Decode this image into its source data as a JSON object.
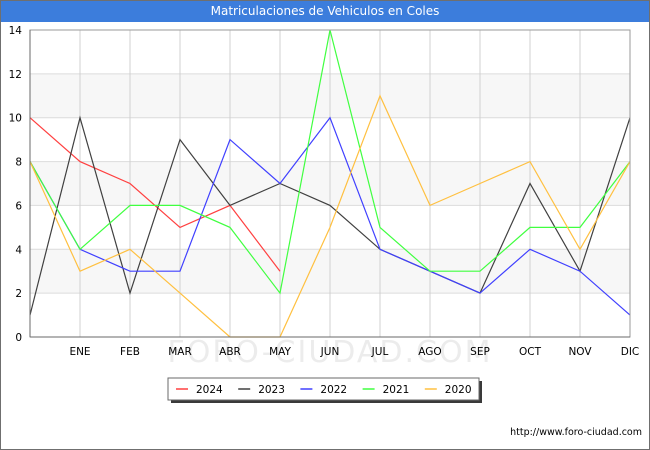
{
  "title": "Matriculaciones de Vehiculos en Coles",
  "credit": "http://www.foro-ciudad.com",
  "watermark": "FORO-CIUDAD.COM",
  "chart_data": {
    "type": "line",
    "title": "Matriculaciones de Vehiculos en Coles",
    "xlabel": "",
    "ylabel": "",
    "categories": [
      "",
      "ENE",
      "FEB",
      "MAR",
      "ABR",
      "MAY",
      "JUN",
      "JUL",
      "AGO",
      "SEP",
      "OCT",
      "NOV",
      "DIC"
    ],
    "ylim": [
      0,
      14
    ],
    "yticks": [
      0,
      2,
      4,
      6,
      8,
      10,
      12,
      14
    ],
    "grid": true,
    "legend_position": "bottom",
    "series": [
      {
        "name": "2024",
        "color": "#ff4040",
        "values": [
          10,
          8,
          7,
          5,
          6,
          3,
          null,
          null,
          null,
          null,
          null,
          null,
          null
        ]
      },
      {
        "name": "2023",
        "color": "#404040",
        "values": [
          1,
          10,
          2,
          9,
          6,
          7,
          6,
          4,
          3,
          2,
          7,
          3,
          10
        ]
      },
      {
        "name": "2022",
        "color": "#4040ff",
        "values": [
          8,
          4,
          3,
          3,
          9,
          7,
          10,
          4,
          3,
          2,
          4,
          3,
          1
        ]
      },
      {
        "name": "2021",
        "color": "#40ff40",
        "values": [
          8,
          4,
          6,
          6,
          5,
          2,
          14,
          5,
          3,
          3,
          5,
          5,
          8
        ]
      },
      {
        "name": "2020",
        "color": "#ffc040",
        "values": [
          8,
          3,
          4,
          2,
          0,
          0,
          5,
          11,
          6,
          7,
          8,
          4,
          8
        ]
      }
    ]
  }
}
